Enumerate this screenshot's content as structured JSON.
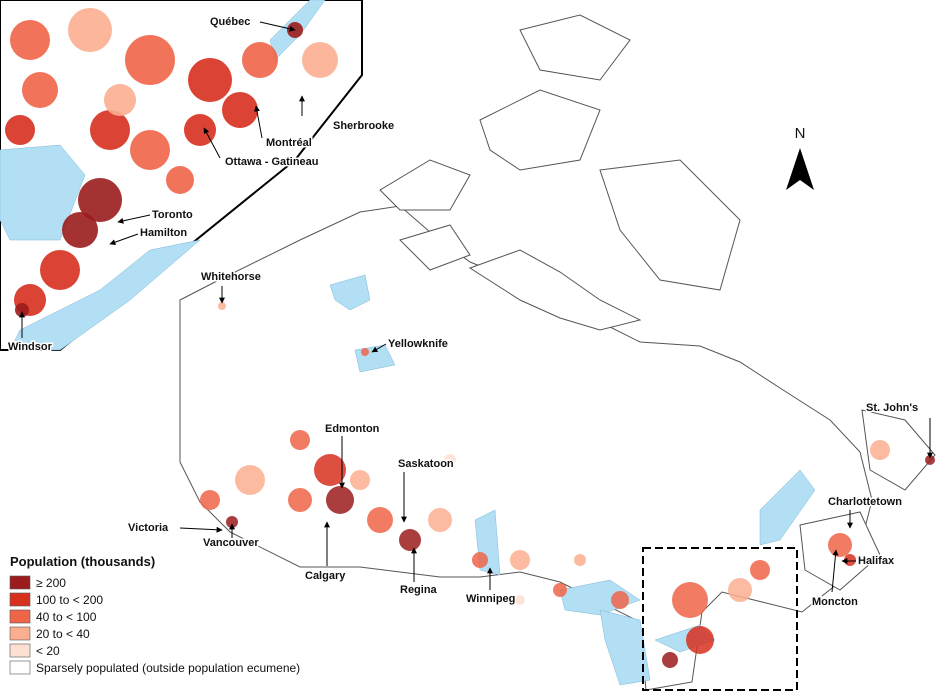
{
  "north_label": "N",
  "legend": {
    "title": "Population (thousands)",
    "items": [
      {
        "label": "≥ 200",
        "color": "#9b1c1c"
      },
      {
        "label": "100 to < 200",
        "color": "#d7301f"
      },
      {
        "label": "40 to < 100",
        "color": "#ef6548"
      },
      {
        "label": "20 to < 40",
        "color": "#fcae91"
      },
      {
        "label": "< 20",
        "color": "#fee0d2"
      },
      {
        "label": "Sparsely populated (outside population ecumene)",
        "color": "#ffffff"
      }
    ]
  },
  "cities": [
    "Whitehorse",
    "Yellowknife",
    "Edmonton",
    "Saskatoon",
    "Victoria",
    "Vancouver",
    "Calgary",
    "Regina",
    "Winnipeg",
    "St. John's",
    "Charlottetown",
    "Halifax",
    "Moncton"
  ],
  "inset_cities": [
    "Québec",
    "Sherbrooke",
    "Montréal",
    "Ottawa - Gatineau",
    "Toronto",
    "Hamilton",
    "Windsor"
  ]
}
